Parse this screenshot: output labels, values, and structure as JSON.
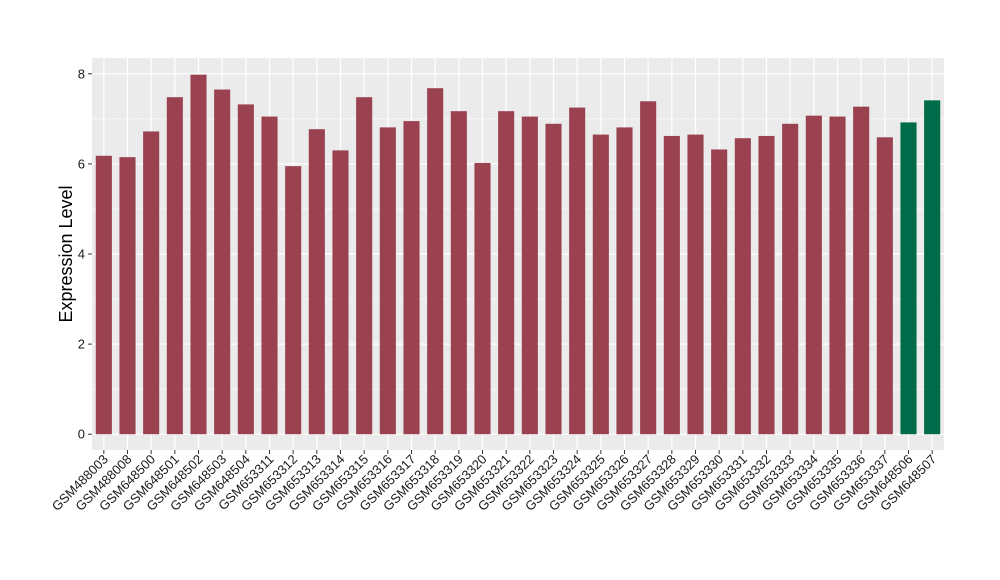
{
  "chart_data": {
    "type": "bar",
    "title": "",
    "xlabel": "",
    "ylabel": "Expression Level",
    "ylim": [
      -0.35,
      8.35
    ],
    "yticks": [
      0,
      2,
      4,
      6,
      8
    ],
    "grid": true,
    "legend": "none",
    "categories": [
      "GSM488003",
      "GSM488008",
      "GSM648500",
      "GSM648501",
      "GSM648502",
      "GSM648503",
      "GSM648504",
      "GSM653311",
      "GSM653312",
      "GSM653313",
      "GSM653314",
      "GSM653315",
      "GSM653316",
      "GSM653317",
      "GSM653318",
      "GSM653319",
      "GSM653320",
      "GSM653321",
      "GSM653322",
      "GSM653323",
      "GSM653324",
      "GSM653325",
      "GSM653326",
      "GSM653327",
      "GSM653328",
      "GSM653329",
      "GSM653330",
      "GSM653331",
      "GSM653332",
      "GSM653333",
      "GSM653334",
      "GSM653335",
      "GSM653336",
      "GSM653337",
      "GSM648506",
      "GSM648507"
    ],
    "values": [
      6.18,
      6.15,
      6.72,
      7.48,
      7.98,
      7.65,
      7.32,
      7.05,
      5.95,
      6.77,
      6.3,
      7.48,
      6.81,
      6.95,
      7.68,
      7.17,
      6.02,
      7.17,
      7.05,
      6.89,
      7.25,
      6.65,
      6.81,
      7.39,
      6.62,
      6.65,
      6.32,
      6.57,
      6.62,
      6.89,
      7.07,
      7.05,
      7.27,
      6.59,
      6.92,
      7.41
    ],
    "bar_colors": [
      "#9B4251",
      "#9B4251",
      "#9B4251",
      "#9B4251",
      "#9B4251",
      "#9B4251",
      "#9B4251",
      "#9B4251",
      "#9B4251",
      "#9B4251",
      "#9B4251",
      "#9B4251",
      "#9B4251",
      "#9B4251",
      "#9B4251",
      "#9B4251",
      "#9B4251",
      "#9B4251",
      "#9B4251",
      "#9B4251",
      "#9B4251",
      "#9B4251",
      "#9B4251",
      "#9B4251",
      "#9B4251",
      "#9B4251",
      "#9B4251",
      "#9B4251",
      "#9B4251",
      "#9B4251",
      "#9B4251",
      "#9B4251",
      "#9B4251",
      "#9B4251",
      "#006B48",
      "#006B48"
    ],
    "panel_background": "#EBEBEB",
    "grid_color": "#FFFFFF"
  }
}
